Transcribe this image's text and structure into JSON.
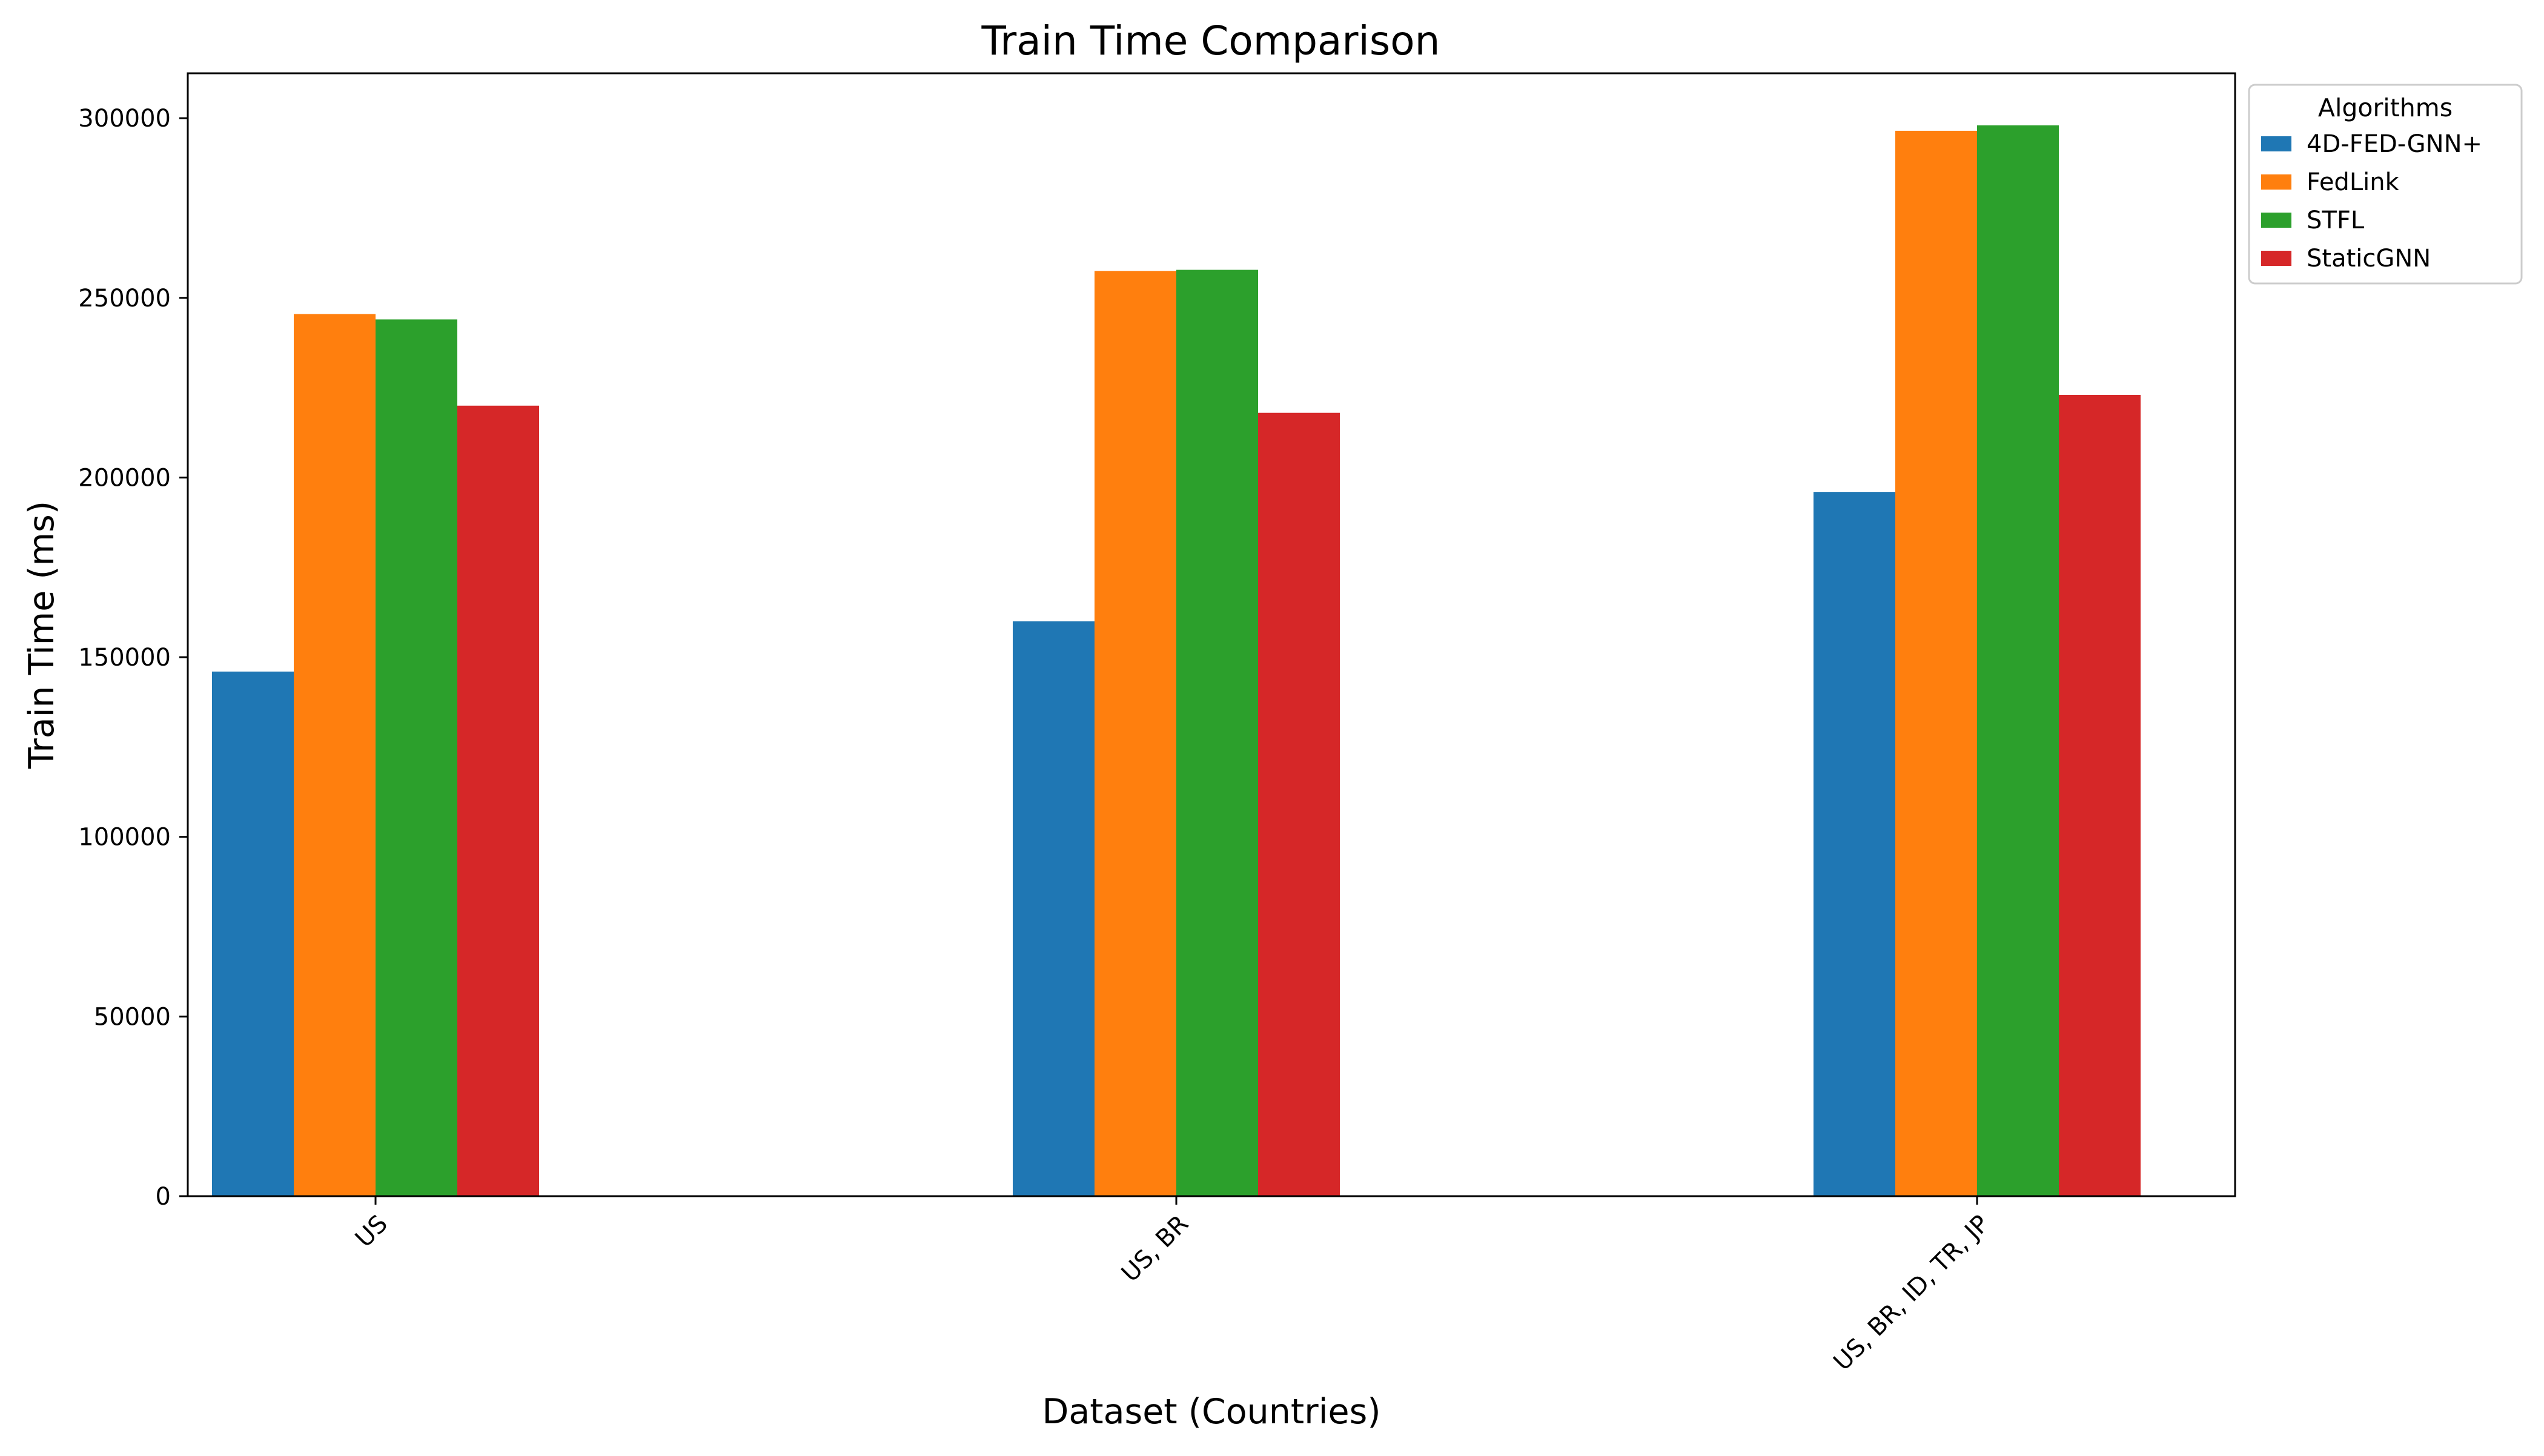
{
  "chart_data": {
    "type": "bar",
    "title": "Train Time Comparison",
    "xlabel": "Dataset (Countries)",
    "ylabel": "Train Time (ms)",
    "categories": [
      "US",
      "US, BR",
      "US, BR, ID, TR, JP"
    ],
    "series": [
      {
        "name": "4D-FED-GNN+",
        "color": "#1f77b4",
        "values": [
          146000,
          160000,
          196000
        ]
      },
      {
        "name": "FedLink",
        "color": "#ff7f0e",
        "values": [
          245500,
          257500,
          296500
        ]
      },
      {
        "name": "STFL",
        "color": "#2ca02c",
        "values": [
          244000,
          257800,
          298000
        ]
      },
      {
        "name": "StaticGNN",
        "color": "#d62728",
        "values": [
          220000,
          218000,
          223000
        ]
      }
    ],
    "ylim": [
      0,
      312500
    ],
    "yticks": [
      0,
      50000,
      100000,
      150000,
      200000,
      250000,
      300000
    ],
    "ytick_labels": [
      "0",
      "50000",
      "100000",
      "150000",
      "200000",
      "250000",
      "300000"
    ],
    "grid": false,
    "legend": {
      "title": "Algorithms",
      "placement": "outside-top-right"
    }
  }
}
